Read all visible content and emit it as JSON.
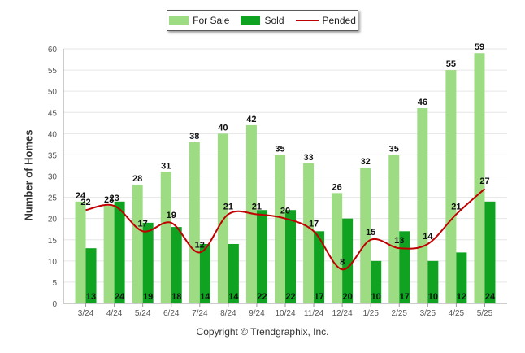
{
  "chart_data": {
    "type": "bar",
    "categories": [
      "3/24",
      "4/24",
      "5/24",
      "6/24",
      "7/24",
      "8/24",
      "9/24",
      "10/24",
      "11/24",
      "12/24",
      "1/25",
      "2/25",
      "3/25",
      "4/25",
      "5/25"
    ],
    "series": [
      {
        "name": "For Sale",
        "type": "bar",
        "color": "#9edc84",
        "values": [
          24,
          23,
          28,
          31,
          38,
          40,
          42,
          35,
          33,
          26,
          32,
          35,
          46,
          55,
          59
        ]
      },
      {
        "name": "Sold",
        "type": "bar",
        "color": "#0fa321",
        "values": [
          13,
          24,
          19,
          18,
          14,
          14,
          22,
          22,
          17,
          20,
          10,
          17,
          10,
          12,
          24
        ]
      },
      {
        "name": "Pended",
        "type": "line",
        "color": "#c00000",
        "values": [
          22,
          23,
          17,
          19,
          12,
          21,
          21,
          20,
          17,
          8,
          15,
          13,
          14,
          21,
          27
        ]
      }
    ],
    "ylabel": "Number of Homes",
    "xlabel": "",
    "ylim": [
      0,
      60
    ],
    "yticks": [
      0,
      5,
      10,
      15,
      20,
      25,
      30,
      35,
      40,
      45,
      50,
      55,
      60
    ],
    "grid": true,
    "legend_position": "top-center"
  },
  "legend": {
    "for_sale": "For Sale",
    "sold": "Sold",
    "pended": "Pended"
  },
  "copyright": "Copyright © Trendgraphix, Inc."
}
